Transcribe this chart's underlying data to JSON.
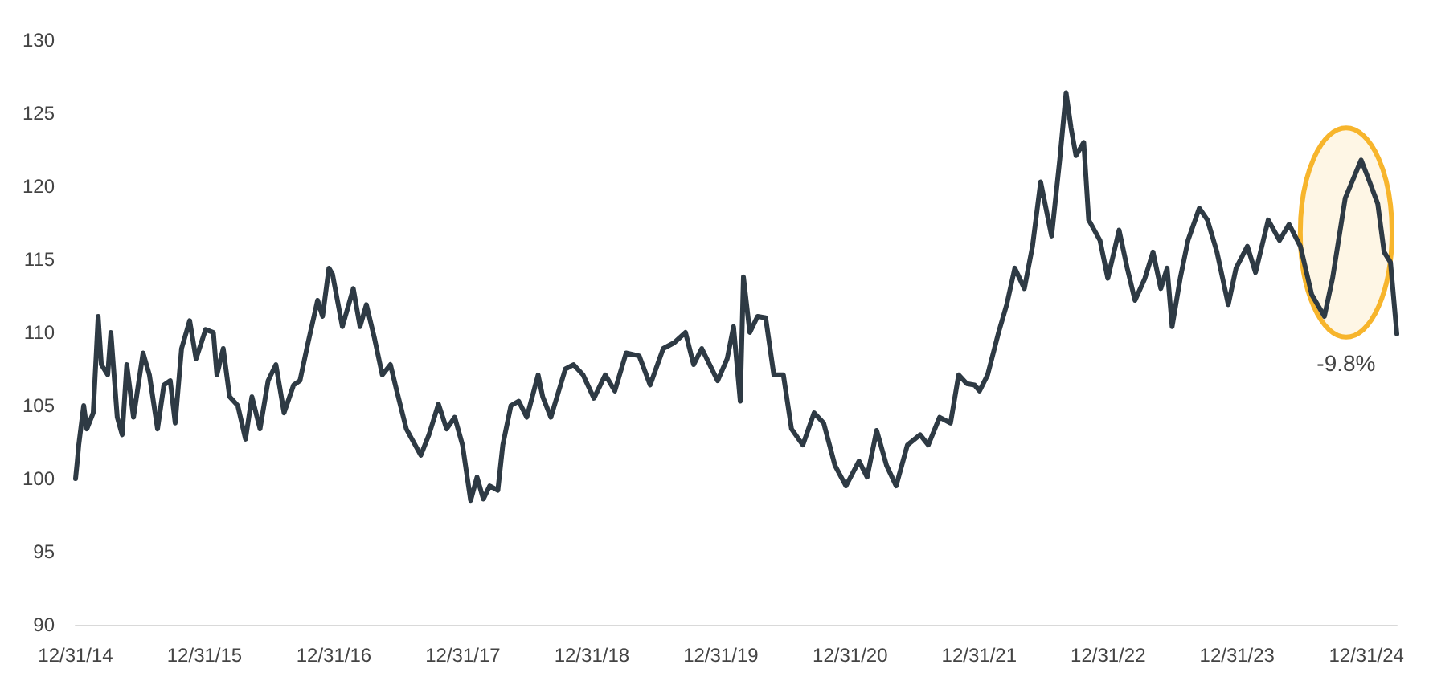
{
  "chart_data": {
    "type": "line",
    "color": "#2e3a44",
    "marker": "none",
    "x": [
      "2014-12-31",
      "2015-01-05",
      "2015-01-09",
      "2015-01-23",
      "2015-02-01",
      "2015-02-19",
      "2015-03-05",
      "2015-03-14",
      "2015-04-01",
      "2015-04-10",
      "2015-04-28",
      "2015-05-12",
      "2015-05-25",
      "2015-06-13",
      "2015-07-10",
      "2015-07-28",
      "2015-08-20",
      "2015-09-07",
      "2015-09-25",
      "2015-10-09",
      "2015-10-27",
      "2015-11-19",
      "2015-12-07",
      "2016-01-03",
      "2016-01-25",
      "2016-02-04",
      "2016-02-22",
      "2016-03-11",
      "2016-04-03",
      "2016-04-25",
      "2016-05-13",
      "2016-06-05",
      "2016-06-28",
      "2016-07-20",
      "2016-08-12",
      "2016-09-08",
      "2016-09-26",
      "2016-10-19",
      "2016-11-15",
      "2016-11-29",
      "2016-12-17",
      "2016-12-27",
      "2017-01-24",
      "2017-02-24",
      "2017-03-15",
      "2017-04-02",
      "2017-04-24",
      "2017-05-17",
      "2017-06-09",
      "2017-06-27",
      "2017-07-24",
      "2017-09-03",
      "2017-09-26",
      "2017-10-23",
      "2017-11-15",
      "2017-12-08",
      "2017-12-30",
      "2018-01-22",
      "2018-02-09",
      "2018-02-27",
      "2018-03-17",
      "2018-04-09",
      "2018-04-23",
      "2018-05-16",
      "2018-06-07",
      "2018-06-30",
      "2018-08-01",
      "2018-08-14",
      "2018-09-06",
      "2018-10-17",
      "2018-11-09",
      "2018-12-06",
      "2019-01-06",
      "2019-02-07",
      "2019-03-06",
      "2019-04-07",
      "2019-05-14",
      "2019-06-14",
      "2019-07-21",
      "2019-08-21",
      "2019-09-22",
      "2019-10-15",
      "2019-11-07",
      "2019-12-22",
      "2020-01-18",
      "2020-02-05",
      "2020-02-24",
      "2020-03-04",
      "2020-03-22",
      "2020-04-13",
      "2020-05-06",
      "2020-05-29",
      "2020-06-25",
      "2020-07-18",
      "2020-08-19",
      "2020-09-20",
      "2020-10-17",
      "2020-11-18",
      "2020-12-19",
      "2021-01-25",
      "2021-02-17",
      "2021-03-16",
      "2021-04-13",
      "2021-05-10",
      "2021-06-11",
      "2021-07-17",
      "2021-08-09",
      "2021-09-10",
      "2021-10-11",
      "2021-11-03",
      "2021-11-26",
      "2021-12-18",
      "2022-01-01",
      "2022-01-24",
      "2022-02-24",
      "2022-03-19",
      "2022-04-11",
      "2022-05-08",
      "2022-05-31",
      "2022-06-23",
      "2022-07-24",
      "2022-08-16",
      "2022-09-03",
      "2022-09-17",
      "2022-10-01",
      "2022-10-23",
      "2022-11-06",
      "2022-12-08",
      "2022-12-30",
      "2023-01-31",
      "2023-02-23",
      "2023-03-17",
      "2023-04-14",
      "2023-05-07",
      "2023-05-29",
      "2023-06-16",
      "2023-06-30",
      "2023-07-23",
      "2023-08-14",
      "2023-09-15",
      "2023-10-08",
      "2023-11-04",
      "2023-12-06",
      "2023-12-28",
      "2024-01-29",
      "2024-02-21",
      "2024-03-28",
      "2024-04-29",
      "2024-05-26",
      "2024-06-27",
      "2024-07-29",
      "2024-09-03",
      "2024-09-26",
      "2024-11-01",
      "2024-12-16",
      "2025-01-09",
      "2025-02-01",
      "2025-02-19",
      "2025-03-09",
      "2025-03-27"
    ],
    "values": [
      100,
      101.2,
      102.3,
      105,
      103.4,
      104.5,
      111.1,
      107.8,
      107.1,
      110,
      104.2,
      103,
      107.8,
      104.2,
      108.6,
      107.1,
      103.4,
      106.4,
      106.7,
      103.8,
      108.9,
      110.8,
      108.2,
      110.2,
      110,
      107.1,
      108.9,
      105.6,
      105,
      102.7,
      105.6,
      103.4,
      106.7,
      107.8,
      104.5,
      106.4,
      106.7,
      109.3,
      112.2,
      111.1,
      114.4,
      114,
      110.4,
      113,
      110.4,
      111.9,
      109.7,
      107.1,
      107.8,
      106,
      103.4,
      101.6,
      103,
      105.1,
      103.4,
      104.2,
      102.3,
      98.5,
      100.1,
      98.6,
      99.5,
      99.2,
      102.3,
      105,
      105.3,
      104.2,
      107.1,
      105.6,
      104.2,
      107.5,
      107.8,
      107.1,
      105.5,
      107.1,
      106,
      108.6,
      108.4,
      106.4,
      108.9,
      109.3,
      110,
      107.8,
      108.9,
      106.7,
      108.2,
      110.4,
      105.3,
      113.8,
      110,
      111.1,
      111,
      107.1,
      107.1,
      103.4,
      102.3,
      104.5,
      103.8,
      100.9,
      99.5,
      101.2,
      100.1,
      103.3,
      100.9,
      99.5,
      102.3,
      103,
      102.3,
      104.2,
      103.8,
      107.1,
      106.5,
      106.4,
      106,
      107.1,
      110,
      111.9,
      114.4,
      113,
      115.9,
      120.3,
      116.6,
      121.8,
      126.4,
      124,
      122.1,
      123,
      117.7,
      116.3,
      113.7,
      117,
      114.4,
      112.2,
      113.7,
      115.5,
      113,
      114.4,
      110.4,
      113.7,
      116.3,
      118.5,
      117.7,
      115.5,
      111.9,
      114.4,
      115.9,
      114.1,
      117.7,
      116.3,
      117.4,
      115.9,
      112.6,
      111.1,
      113.7,
      119.2,
      121.8,
      120.3,
      118.8,
      115.5,
      114.8,
      109.9
    ],
    "xlim": [
      "2014-12-31",
      "2025-03-27"
    ],
    "xticks": [
      {
        "value": "2014-12-31",
        "label": "12/31/14"
      },
      {
        "value": "2015-12-31",
        "label": "12/31/15"
      },
      {
        "value": "2016-12-31",
        "label": "12/31/16"
      },
      {
        "value": "2017-12-31",
        "label": "12/31/17"
      },
      {
        "value": "2018-12-31",
        "label": "12/31/18"
      },
      {
        "value": "2019-12-31",
        "label": "12/31/19"
      },
      {
        "value": "2020-12-31",
        "label": "12/31/20"
      },
      {
        "value": "2021-12-31",
        "label": "12/31/21"
      },
      {
        "value": "2022-12-31",
        "label": "12/31/22"
      },
      {
        "value": "2023-12-31",
        "label": "12/31/23"
      },
      {
        "value": "2024-12-31",
        "label": "12/31/24"
      }
    ],
    "ylim": [
      90,
      130
    ],
    "yticks": [
      90,
      95,
      100,
      105,
      110,
      115,
      120,
      125,
      130
    ],
    "annotations": [
      "-9.8%"
    ]
  }
}
